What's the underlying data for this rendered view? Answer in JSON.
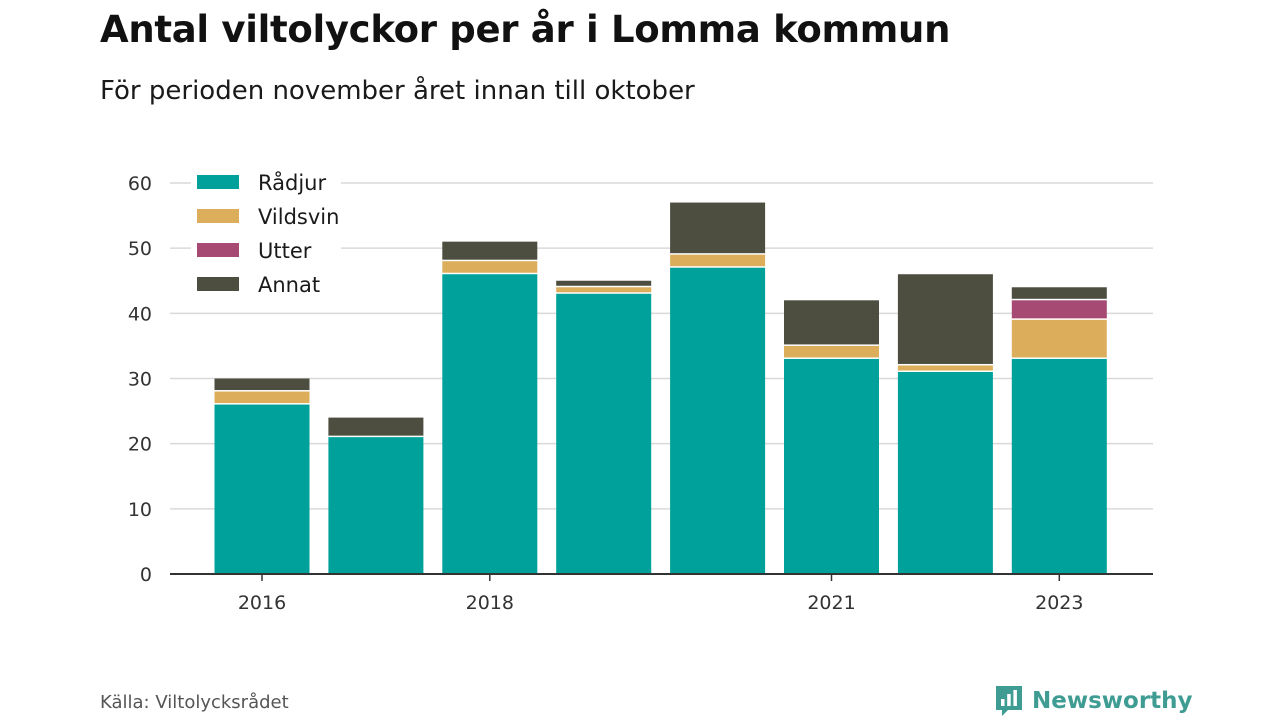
{
  "title": "Antal viltolyckor per år i Lomma kommun",
  "subtitle": "För perioden november året innan till oktober",
  "source": "Källa: Viltolycksrådet",
  "brand": "Newsworthy",
  "colors": {
    "Rådjur": "#00a19a",
    "Vildsvin": "#dcae5b",
    "Utter": "#a64a74",
    "Annat": "#4d4e40",
    "grid": "#d9d9d9",
    "axis": "#333333",
    "brand": "#3f9c93"
  },
  "chart_data": {
    "type": "bar",
    "stacked": true,
    "categories": [
      "2016",
      "2017",
      "2018",
      "2019",
      "2020",
      "2021",
      "2022",
      "2023"
    ],
    "tick_labels": [
      "2016",
      "",
      "2018",
      "",
      "",
      "2021",
      "",
      "2023"
    ],
    "series": [
      {
        "name": "Rådjur",
        "values": [
          26,
          21,
          46,
          43,
          47,
          33,
          31,
          33
        ]
      },
      {
        "name": "Vildsvin",
        "values": [
          2,
          0,
          2,
          1,
          2,
          2,
          1,
          6
        ]
      },
      {
        "name": "Utter",
        "values": [
          0,
          0,
          0,
          0,
          0,
          0,
          0,
          3
        ]
      },
      {
        "name": "Annat",
        "values": [
          2,
          3,
          3,
          1,
          8,
          7,
          14,
          2
        ]
      }
    ],
    "ylim": [
      0,
      60
    ],
    "yticks": [
      0,
      10,
      20,
      30,
      40,
      50,
      60
    ],
    "xlabel": "",
    "ylabel": "",
    "grid": true,
    "legend": "top-left"
  }
}
